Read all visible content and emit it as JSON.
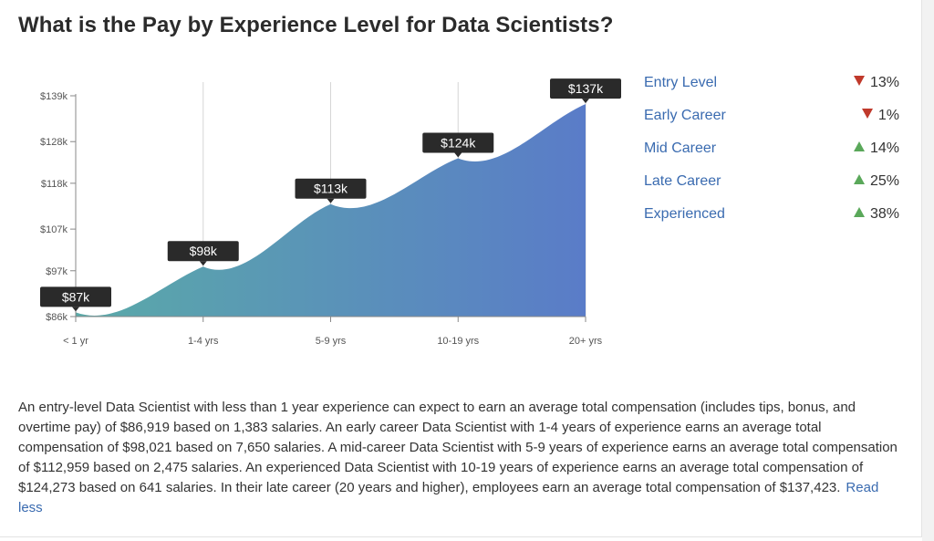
{
  "title": "What is the Pay by Experience Level for Data Scientists?",
  "chart_data": {
    "type": "area",
    "categories": [
      "< 1 yr",
      "1-4 yrs",
      "5-9 yrs",
      "10-19 yrs",
      "20+ yrs"
    ],
    "values": [
      87,
      98,
      113,
      124,
      137
    ],
    "data_labels": [
      "$87k",
      "$98k",
      "$113k",
      "$124k",
      "$137k"
    ],
    "y_ticks": [
      86,
      97,
      107,
      118,
      128,
      139
    ],
    "y_tick_labels": [
      "$86k",
      "$97k",
      "$107k",
      "$118k",
      "$128k",
      "$139k"
    ],
    "ylim": [
      86,
      139
    ],
    "grid": "vertical",
    "colors": {
      "gradient_start": "#5aaaa8",
      "gradient_end": "#5a7cc8",
      "tooltip_bg": "#2a2a2a"
    }
  },
  "legend": [
    {
      "label": "Entry Level",
      "direction": "down",
      "change": "13%"
    },
    {
      "label": "Early Career",
      "direction": "down",
      "change": "1%"
    },
    {
      "label": "Mid Career",
      "direction": "up",
      "change": "14%"
    },
    {
      "label": "Late Career",
      "direction": "up",
      "change": "25%"
    },
    {
      "label": "Experienced",
      "direction": "up",
      "change": "38%"
    }
  ],
  "description": "An entry-level Data Scientist with less than 1 year experience can expect to earn an average total compensation (includes tips, bonus, and overtime pay) of $86,919 based on 1,383 salaries. An early career Data Scientist with 1-4 years of experience earns an average total compensation of $98,021 based on 7,650 salaries. A mid-career Data Scientist with 5-9 years of experience earns an average total compensation of $112,959 based on 2,475 salaries. An experienced Data Scientist with 10-19 years of experience earns an average total compensation of $124,273 based on 641 salaries. In their late career (20 years and higher), employees earn an average total compensation of $137,423.",
  "read_less_label": "Read less"
}
